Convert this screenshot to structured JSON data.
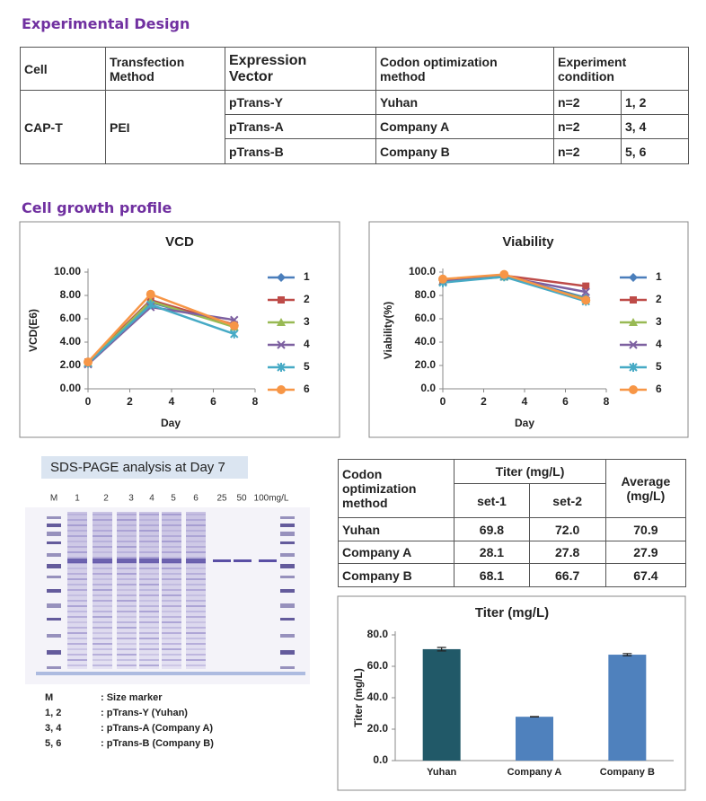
{
  "headings": {
    "design": "Experimental Design",
    "growth": "Cell growth profile"
  },
  "design_table": {
    "header": [
      "Cell",
      "Transfection Method",
      "Expression Vector",
      "Codon optimization method",
      "Experiment condition"
    ],
    "cell": "CAP-T",
    "transfection": "PEI",
    "rows": [
      [
        "pTrans-Y",
        "Yuhan",
        "n=2",
        "1, 2"
      ],
      [
        "pTrans-A",
        "Company A",
        "n=2",
        "3, 4"
      ],
      [
        "pTrans-B",
        "Company B",
        "n=2",
        "5, 6"
      ]
    ]
  },
  "gel": {
    "title": "SDS-PAGE analysis at Day 7",
    "lanes": [
      "M",
      "1",
      "2",
      "3",
      "4",
      "5",
      "6",
      "25",
      "50",
      "100mg/L"
    ],
    "legend": [
      [
        "M",
        ": Size marker"
      ],
      [
        "1, 2",
        ": pTrans-Y (Yuhan)"
      ],
      [
        "3, 4",
        ": pTrans-A (Company A)"
      ],
      [
        "5, 6",
        ": pTrans-B (Company B)"
      ]
    ]
  },
  "titer_table": {
    "header": {
      "method": "Codon optimization method",
      "titer": "Titer (mg/L)",
      "sets": [
        "set-1",
        "set-2"
      ],
      "average": "Average (mg/L)"
    },
    "rows": [
      [
        "Yuhan",
        "69.8",
        "72.0",
        "70.9"
      ],
      [
        "Company A",
        "28.1",
        "27.8",
        "27.9"
      ],
      [
        "Company B",
        "68.1",
        "66.7",
        "67.4"
      ]
    ]
  },
  "chart_data": [
    {
      "type": "line",
      "title": "VCD",
      "x_label": "Day",
      "y_label": "VCD(E6)",
      "x": [
        0,
        3,
        7
      ],
      "xlim": [
        0,
        8
      ],
      "xticks": [
        0,
        2,
        4,
        6,
        8
      ],
      "ylim": [
        0,
        10
      ],
      "yticks": [
        {
          "value": 0,
          "label": "0.00"
        },
        {
          "value": 2,
          "label": "2.00"
        },
        {
          "value": 4,
          "label": "4.00"
        },
        {
          "value": 6,
          "label": "6.00"
        },
        {
          "value": 8,
          "label": "8.00"
        },
        {
          "value": 10,
          "label": "10.00"
        }
      ],
      "legend": "right",
      "series": [
        {
          "name": "1",
          "color": "#4a7ebb",
          "marker": "diamond",
          "values": [
            2.3,
            7.4,
            5.4
          ]
        },
        {
          "name": "2",
          "color": "#be4b48",
          "marker": "square",
          "values": [
            2.3,
            7.6,
            5.5
          ]
        },
        {
          "name": "3",
          "color": "#98b954",
          "marker": "triangle",
          "values": [
            2.2,
            7.5,
            5.3
          ]
        },
        {
          "name": "4",
          "color": "#7d60a0",
          "marker": "x",
          "values": [
            2.1,
            7.0,
            5.9
          ]
        },
        {
          "name": "5",
          "color": "#46aac5",
          "marker": "asterisk",
          "values": [
            2.2,
            7.2,
            4.7
          ]
        },
        {
          "name": "6",
          "color": "#f79646",
          "marker": "circle",
          "values": [
            2.3,
            8.1,
            5.4
          ]
        }
      ]
    },
    {
      "type": "line",
      "title": "Viability",
      "x_label": "Day",
      "y_label": "Viability(%)",
      "x": [
        0,
        3,
        7
      ],
      "xlim": [
        0,
        8
      ],
      "xticks": [
        0,
        2,
        4,
        6,
        8
      ],
      "ylim": [
        0,
        100
      ],
      "yticks": [
        {
          "value": 0,
          "label": "0.0"
        },
        {
          "value": 20,
          "label": "20.0"
        },
        {
          "value": 40,
          "label": "40.0"
        },
        {
          "value": 60,
          "label": "60.0"
        },
        {
          "value": 80,
          "label": "80.0"
        },
        {
          "value": 100,
          "label": "100.0"
        }
      ],
      "legend": "right",
      "series": [
        {
          "name": "1",
          "color": "#4a7ebb",
          "marker": "diamond",
          "values": [
            93,
            97,
            78
          ]
        },
        {
          "name": "2",
          "color": "#be4b48",
          "marker": "square",
          "values": [
            93,
            97,
            88
          ]
        },
        {
          "name": "3",
          "color": "#98b954",
          "marker": "triangle",
          "values": [
            92,
            96,
            77
          ]
        },
        {
          "name": "4",
          "color": "#7d60a0",
          "marker": "x",
          "values": [
            92,
            96,
            83
          ]
        },
        {
          "name": "5",
          "color": "#46aac5",
          "marker": "asterisk",
          "values": [
            91,
            96,
            75
          ]
        },
        {
          "name": "6",
          "color": "#f79646",
          "marker": "circle",
          "values": [
            94,
            98,
            76
          ]
        }
      ]
    },
    {
      "type": "bar",
      "title": "Titer (mg/L)",
      "y_label": "Titer (mg/L)",
      "categories": [
        "Yuhan",
        "Company A",
        "Company B"
      ],
      "values": [
        70.9,
        27.9,
        67.4
      ],
      "errors": [
        1.1,
        0.15,
        0.7
      ],
      "colors": [
        "#215968",
        "#4f81bd",
        "#4f81bd"
      ],
      "ylim": [
        0,
        80
      ],
      "yticks": [
        {
          "value": 0,
          "label": "0.0"
        },
        {
          "value": 20,
          "label": "20.0"
        },
        {
          "value": 40,
          "label": "40.0"
        },
        {
          "value": 60,
          "label": "60.0"
        },
        {
          "value": 80,
          "label": "80.0"
        }
      ]
    }
  ]
}
